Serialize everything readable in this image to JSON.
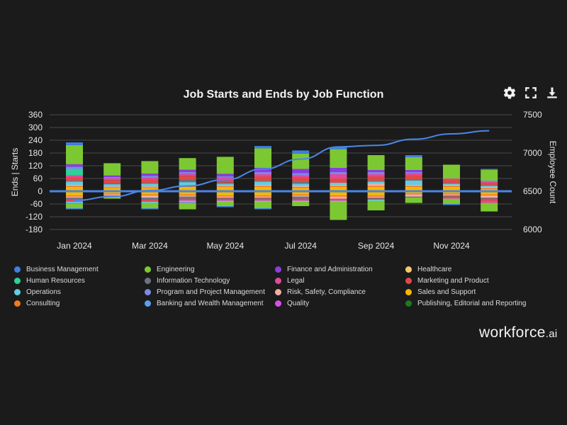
{
  "toolbar": {
    "settings_icon": "gear-icon",
    "fullscreen_icon": "expand-icon",
    "download_icon": "download-icon"
  },
  "brand": {
    "name": "workforce",
    "suffix": ".ai"
  },
  "chart_data": {
    "type": "bar",
    "title": "Job Starts and Ends by Job Function",
    "ylabel": "Ends | Starts",
    "y2label": "Employee Count",
    "ylim": [
      -180,
      360
    ],
    "yticks": [
      360,
      300,
      240,
      180,
      120,
      60,
      0,
      -60,
      -120,
      -180
    ],
    "y2lim": [
      6000,
      7500
    ],
    "y2ticks": [
      7500,
      7000,
      6500,
      6000
    ],
    "xticks": [
      "Jan 2024",
      "Mar 2024",
      "May 2024",
      "Jul 2024",
      "Sep 2024",
      "Nov 2024"
    ],
    "xtick_positions": [
      0,
      2,
      4,
      6,
      8,
      10
    ],
    "categories": [
      "Jan 2024",
      "Feb 2024",
      "Mar 2024",
      "Apr 2024",
      "May 2024",
      "Jun 2024",
      "Jul 2024",
      "Aug 2024",
      "Sep 2024",
      "Oct 2024",
      "Nov 2024",
      "Dec 2024"
    ],
    "legend": [
      {
        "name": "Business Management",
        "color": "#3f7fe0"
      },
      {
        "name": "Engineering",
        "color": "#7cc832"
      },
      {
        "name": "Finance and Administration",
        "color": "#8a3de0"
      },
      {
        "name": "Healthcare",
        "color": "#f5c86a"
      },
      {
        "name": "Human Resources",
        "color": "#2ed19a"
      },
      {
        "name": "Information Technology",
        "color": "#6b7482"
      },
      {
        "name": "Legal",
        "color": "#e04a9a"
      },
      {
        "name": "Marketing and Product",
        "color": "#e04848"
      },
      {
        "name": "Operations",
        "color": "#62cde0"
      },
      {
        "name": "Program and Project Management",
        "color": "#7e88e6"
      },
      {
        "name": "Risk, Safety, Compliance",
        "color": "#f2aea6"
      },
      {
        "name": "Sales and Support",
        "color": "#f5b800"
      },
      {
        "name": "Consulting",
        "color": "#f07a20"
      },
      {
        "name": "Banking and Wealth Management",
        "color": "#5aa0f0"
      },
      {
        "name": "Quality",
        "color": "#d84ee8"
      },
      {
        "name": "Publishing, Editorial and Reporting",
        "color": "#1e7a1e"
      }
    ],
    "starts_order": [
      "Sales and Support",
      "Consulting",
      "Risk, Safety, Compliance",
      "Operations",
      "Information Technology",
      "Marketing and Product",
      "Legal",
      "Human Resources",
      "Program and Project Management",
      "Finance and Administration",
      "Engineering",
      "Business Management"
    ],
    "starts": [
      {
        "Sales and Support": 20,
        "Consulting": 5,
        "Risk, Safety, Compliance": 5,
        "Operations": 15,
        "Information Technology": 5,
        "Marketing and Product": 15,
        "Legal": 10,
        "Human Resources": 30,
        "Program and Project Management": 10,
        "Finance and Administration": 12,
        "Engineering": 90,
        "Business Management": 13
      },
      {
        "Sales and Support": 15,
        "Consulting": 3,
        "Risk, Safety, Compliance": 5,
        "Operations": 10,
        "Information Technology": 5,
        "Marketing and Product": 15,
        "Legal": 8,
        "Human Resources": 0,
        "Program and Project Management": 6,
        "Finance and Administration": 7,
        "Engineering": 58,
        "Business Management": 0
      },
      {
        "Sales and Support": 15,
        "Consulting": 3,
        "Risk, Safety, Compliance": 5,
        "Operations": 12,
        "Information Technology": 5,
        "Marketing and Product": 15,
        "Legal": 8,
        "Human Resources": 0,
        "Program and Project Management": 10,
        "Finance and Administration": 10,
        "Engineering": 59,
        "Business Management": 0
      },
      {
        "Sales and Support": 20,
        "Consulting": 3,
        "Risk, Safety, Compliance": 5,
        "Operations": 15,
        "Information Technology": 10,
        "Marketing and Product": 20,
        "Legal": 8,
        "Human Resources": 0,
        "Program and Project Management": 10,
        "Finance and Administration": 10,
        "Engineering": 55,
        "Business Management": 0
      },
      {
        "Sales and Support": 20,
        "Consulting": 3,
        "Risk, Safety, Compliance": 5,
        "Operations": 8,
        "Information Technology": 5,
        "Marketing and Product": 15,
        "Legal": 8,
        "Human Resources": 0,
        "Program and Project Management": 6,
        "Finance and Administration": 12,
        "Engineering": 80,
        "Business Management": 0
      },
      {
        "Sales and Support": 20,
        "Consulting": 5,
        "Risk, Safety, Compliance": 5,
        "Operations": 15,
        "Information Technology": 5,
        "Marketing and Product": 20,
        "Legal": 10,
        "Human Resources": 0,
        "Program and Project Management": 10,
        "Finance and Administration": 20,
        "Engineering": 92,
        "Business Management": 11
      },
      {
        "Sales and Support": 15,
        "Consulting": 5,
        "Risk, Safety, Compliance": 5,
        "Operations": 10,
        "Information Technology": 10,
        "Marketing and Product": 20,
        "Legal": 10,
        "Human Resources": 0,
        "Program and Project Management": 10,
        "Finance and Administration": 20,
        "Engineering": 72,
        "Business Management": 15
      },
      {
        "Sales and Support": 20,
        "Consulting": 5,
        "Risk, Safety, Compliance": 5,
        "Operations": 10,
        "Information Technology": 0,
        "Marketing and Product": 20,
        "Legal": 20,
        "Human Resources": 0,
        "Program and Project Management": 10,
        "Finance and Administration": 20,
        "Engineering": 88,
        "Business Management": 10
      },
      {
        "Sales and Support": 20,
        "Consulting": 5,
        "Risk, Safety, Compliance": 10,
        "Operations": 10,
        "Information Technology": 5,
        "Marketing and Product": 20,
        "Legal": 10,
        "Human Resources": 0,
        "Program and Project Management": 10,
        "Finance and Administration": 10,
        "Engineering": 70,
        "Business Management": 0
      },
      {
        "Sales and Support": 20,
        "Consulting": 5,
        "Risk, Safety, Compliance": 5,
        "Operations": 20,
        "Information Technology": 5,
        "Marketing and Product": 20,
        "Legal": 10,
        "Human Resources": 0,
        "Program and Project Management": 5,
        "Finance and Administration": 10,
        "Engineering": 60,
        "Business Management": 10
      },
      {
        "Sales and Support": 20,
        "Consulting": 5,
        "Risk, Safety, Compliance": 5,
        "Operations": 5,
        "Information Technology": 5,
        "Marketing and Product": 15,
        "Legal": 5,
        "Human Resources": 0,
        "Program and Project Management": 0,
        "Finance and Administration": 0,
        "Engineering": 65,
        "Business Management": 0
      },
      {
        "Sales and Support": 10,
        "Consulting": 5,
        "Risk, Safety, Compliance": 5,
        "Operations": 5,
        "Information Technology": 5,
        "Marketing and Product": 10,
        "Legal": 5,
        "Human Resources": 0,
        "Program and Project Management": 5,
        "Finance and Administration": 0,
        "Engineering": 50,
        "Business Management": 5
      }
    ],
    "ends_order": [
      "Sales and Support",
      "Consulting",
      "Risk, Safety, Compliance",
      "Information Technology",
      "Marketing and Product",
      "Legal",
      "Operations",
      "Program and Project Management",
      "Engineering",
      "Business Management"
    ],
    "ends": [
      {
        "Sales and Support": 20,
        "Consulting": 5,
        "Risk, Safety, Compliance": 5,
        "Information Technology": 10,
        "Marketing and Product": 5,
        "Legal": 5,
        "Operations": 5,
        "Program and Project Management": 5,
        "Engineering": 20,
        "Business Management": 5
      },
      {
        "Sales and Support": 10,
        "Consulting": 5,
        "Risk, Safety, Compliance": 5,
        "Information Technology": 0,
        "Marketing and Product": 5,
        "Legal": 0,
        "Operations": 5,
        "Program and Project Management": 0,
        "Engineering": 5,
        "Business Management": 0
      },
      {
        "Sales and Support": 15,
        "Consulting": 5,
        "Risk, Safety, Compliance": 10,
        "Information Technology": 10,
        "Marketing and Product": 5,
        "Legal": 5,
        "Operations": 5,
        "Program and Project Management": 0,
        "Engineering": 25,
        "Business Management": 5
      },
      {
        "Sales and Support": 15,
        "Consulting": 5,
        "Risk, Safety, Compliance": 5,
        "Information Technology": 10,
        "Marketing and Product": 5,
        "Legal": 5,
        "Operations": 5,
        "Program and Project Management": 5,
        "Engineering": 30,
        "Business Management": 0
      },
      {
        "Sales and Support": 20,
        "Consulting": 5,
        "Risk, Safety, Compliance": 5,
        "Information Technology": 5,
        "Marketing and Product": 5,
        "Legal": 5,
        "Operations": 5,
        "Program and Project Management": 0,
        "Engineering": 20,
        "Business Management": 5
      },
      {
        "Sales and Support": 20,
        "Consulting": 5,
        "Risk, Safety, Compliance": 5,
        "Information Technology": 5,
        "Marketing and Product": 5,
        "Legal": 5,
        "Operations": 5,
        "Program and Project Management": 0,
        "Engineering": 30,
        "Business Management": 5
      },
      {
        "Sales and Support": 15,
        "Consulting": 5,
        "Risk, Safety, Compliance": 5,
        "Information Technology": 10,
        "Marketing and Product": 5,
        "Legal": 5,
        "Operations": 5,
        "Program and Project Management": 0,
        "Engineering": 20,
        "Business Management": 0
      },
      {
        "Sales and Support": 20,
        "Consulting": 5,
        "Risk, Safety, Compliance": 10,
        "Information Technology": 0,
        "Marketing and Product": 5,
        "Legal": 5,
        "Operations": 5,
        "Program and Project Management": 0,
        "Engineering": 85,
        "Business Management": 0
      },
      {
        "Sales and Support": 20,
        "Consulting": 5,
        "Risk, Safety, Compliance": 5,
        "Information Technology": 5,
        "Marketing and Product": 5,
        "Legal": 0,
        "Operations": 5,
        "Program and Project Management": 0,
        "Engineering": 45,
        "Business Management": 0
      },
      {
        "Sales and Support": 10,
        "Consulting": 5,
        "Risk, Safety, Compliance": 10,
        "Information Technology": 5,
        "Marketing and Product": 0,
        "Legal": 0,
        "Operations": 0,
        "Program and Project Management": 0,
        "Engineering": 25,
        "Business Management": 0
      },
      {
        "Sales and Support": 10,
        "Consulting": 5,
        "Risk, Safety, Compliance": 5,
        "Information Technology": 5,
        "Marketing and Product": 5,
        "Legal": 5,
        "Operations": 0,
        "Program and Project Management": 0,
        "Engineering": 25,
        "Business Management": 5
      },
      {
        "Sales and Support": 15,
        "Consulting": 5,
        "Risk, Safety, Compliance": 10,
        "Information Technology": 5,
        "Marketing and Product": 10,
        "Legal": 10,
        "Operations": 0,
        "Program and Project Management": 0,
        "Engineering": 40,
        "Business Management": 0
      }
    ],
    "employee_count": {
      "name": "Employee Count",
      "x": [
        0,
        1,
        2,
        3,
        4,
        5,
        6,
        7,
        8,
        9,
        10,
        11
      ],
      "values": [
        6380,
        6430,
        6510,
        6570,
        6650,
        6790,
        6920,
        7080,
        7100,
        7180,
        7250,
        7290
      ]
    }
  }
}
